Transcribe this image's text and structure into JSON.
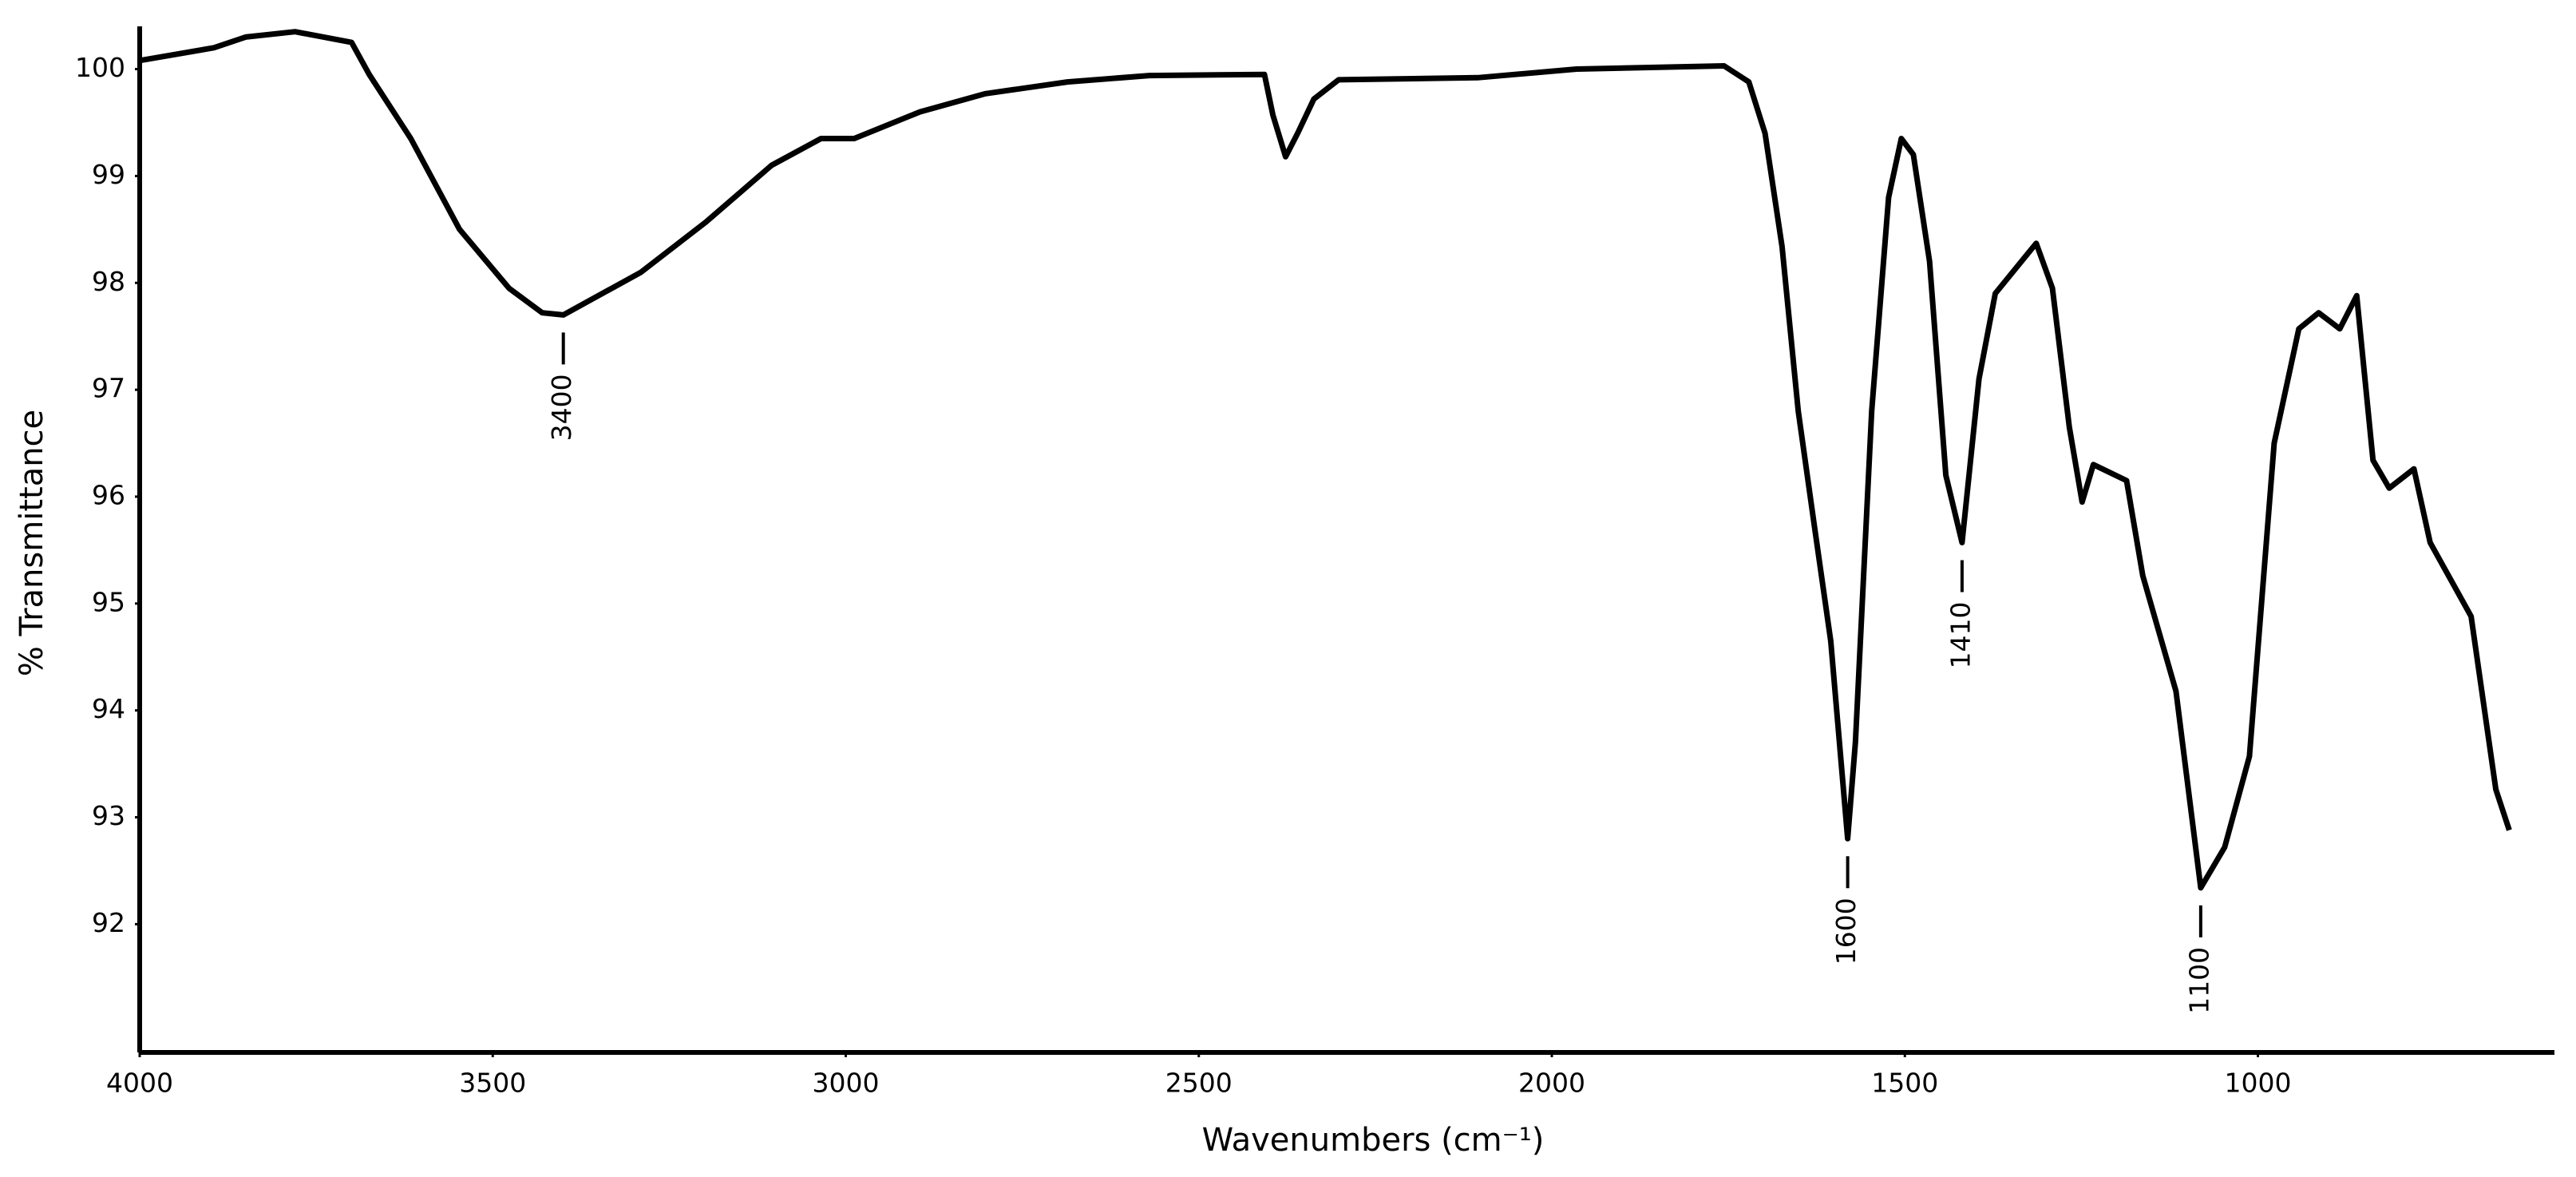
{
  "chart_data": {
    "type": "line",
    "x_label": "Wavenumbers (cm⁻¹)",
    "y_label": "% Transmittance",
    "x": [
      4000,
      3895,
      3850,
      3780,
      3700,
      3675,
      3616,
      3547,
      3477,
      3430,
      3400,
      3290,
      3198,
      3105,
      3035,
      2988,
      2895,
      2802,
      2686,
      2570,
      2407,
      2395,
      2377,
      2360,
      2337,
      2302,
      2105,
      1965,
      1756,
      1721,
      1698,
      1674,
      1651,
      1628,
      1605,
      1581,
      1570,
      1547,
      1523,
      1505,
      1488,
      1465,
      1442,
      1419,
      1395,
      1372,
      1314,
      1291,
      1267,
      1249,
      1233,
      1186,
      1163,
      1116,
      1081,
      1047,
      1012,
      977,
      942,
      914,
      884,
      860,
      837,
      814,
      779,
      756,
      698,
      663,
      644
    ],
    "values": [
      100.08,
      100.2,
      100.3,
      100.35,
      100.25,
      99.95,
      99.35,
      98.5,
      97.95,
      97.72,
      97.7,
      98.1,
      98.57,
      99.1,
      99.35,
      99.35,
      99.6,
      99.77,
      99.88,
      99.94,
      99.95,
      99.57,
      99.18,
      99.4,
      99.72,
      99.9,
      99.92,
      100,
      100.03,
      99.88,
      99.4,
      98.34,
      96.8,
      95.72,
      94.65,
      92.8,
      93.7,
      96.8,
      98.8,
      99.35,
      99.2,
      98.2,
      96.2,
      95.57,
      97.1,
      97.9,
      98.37,
      97.95,
      96.65,
      95.95,
      96.3,
      96.15,
      95.26,
      94.18,
      92.34,
      92.72,
      93.57,
      96.5,
      97.57,
      97.72,
      97.57,
      97.88,
      96.34,
      96.08,
      96.26,
      95.57,
      94.88,
      93.26,
      92.88
    ],
    "color": "#000000",
    "xlim": [
      4000,
      580
    ],
    "xticks": [
      4000,
      3500,
      3000,
      2500,
      2000,
      1500,
      1000
    ],
    "ylim": [
      90.8,
      100.4
    ],
    "yticks": [
      92,
      93,
      94,
      95,
      96,
      97,
      98,
      99,
      100
    ],
    "annotations": [
      {
        "x": 3400,
        "y": 97.7,
        "text": "3400"
      },
      {
        "x": 1581,
        "y": 92.8,
        "text": "1600"
      },
      {
        "x": 1419,
        "y": 95.57,
        "text": "1410"
      },
      {
        "x": 1081,
        "y": 92.34,
        "text": "1100"
      }
    ]
  }
}
